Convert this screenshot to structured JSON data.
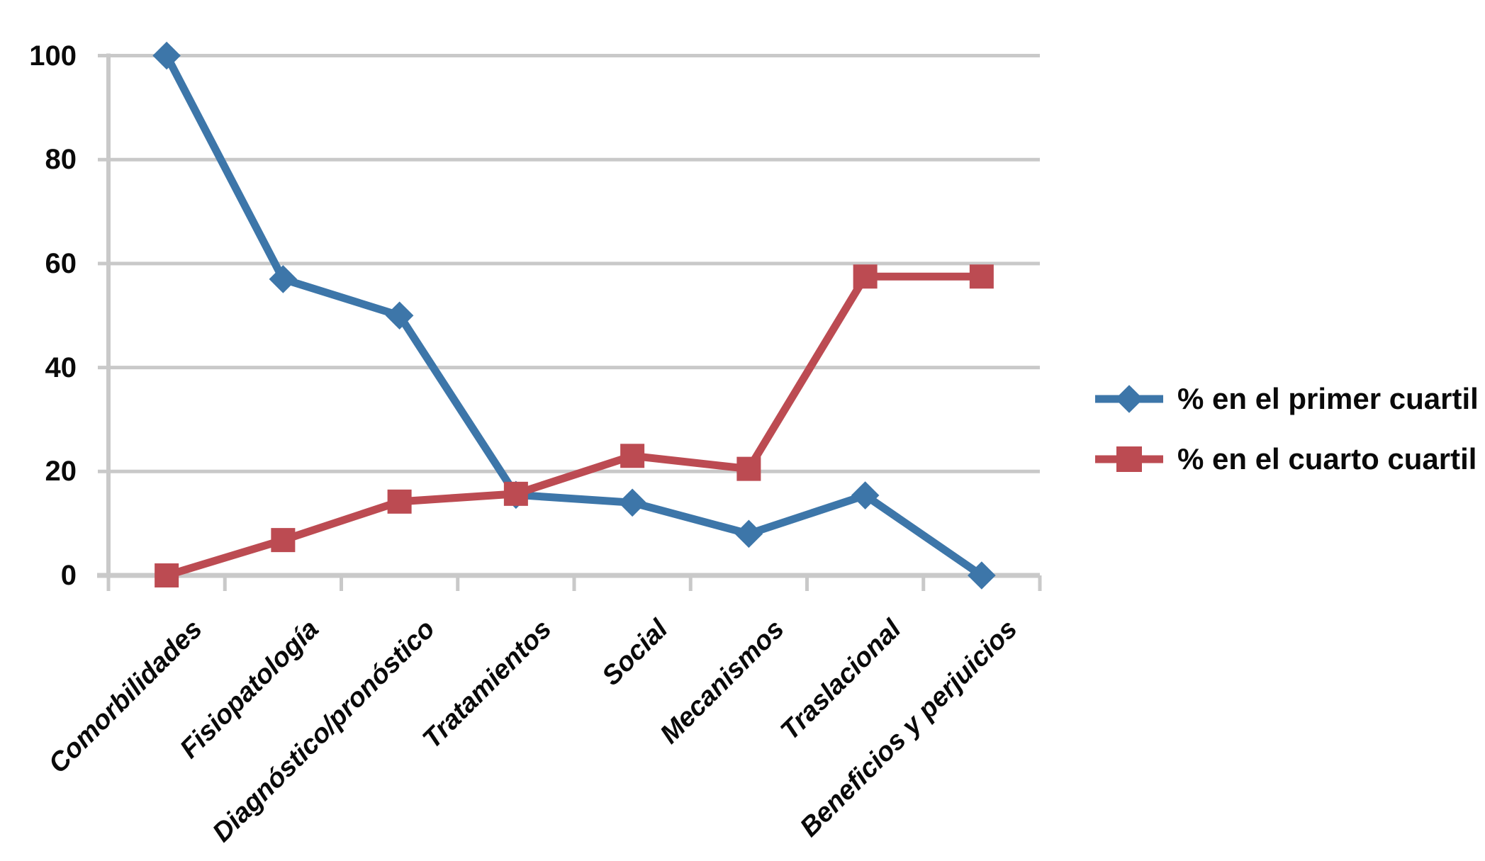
{
  "chart_data": {
    "type": "line",
    "categories": [
      "Comorbilidades",
      "Fisiopatología",
      "Diagnóstico/pronóstico",
      "Tratamientos",
      "Social",
      "Mecanismos",
      "Traslacional",
      "Beneficios y perjuicios"
    ],
    "series": [
      {
        "name": "% en el primer cuartil",
        "marker": "diamond",
        "color": "#3D76A9",
        "values": [
          100,
          57,
          50,
          15.5,
          14,
          8,
          15.4,
          0
        ]
      },
      {
        "name": "% en el cuarto cuartil",
        "marker": "square",
        "color": "#BC4B52",
        "values": [
          0,
          6.8,
          14.2,
          15.7,
          23,
          20.5,
          57.5,
          57.5
        ]
      }
    ],
    "title": "",
    "xlabel": "",
    "ylabel": "",
    "yticks": [
      0,
      20,
      40,
      60,
      80,
      100
    ],
    "ylim": [
      0,
      100
    ],
    "grid": "horizontal",
    "legend_position": "right",
    "colors": {
      "gridline": "#C9C9C9",
      "axis": "#C9C9C9",
      "text": "#0A0A0A",
      "background": "#FFFFFF"
    }
  }
}
